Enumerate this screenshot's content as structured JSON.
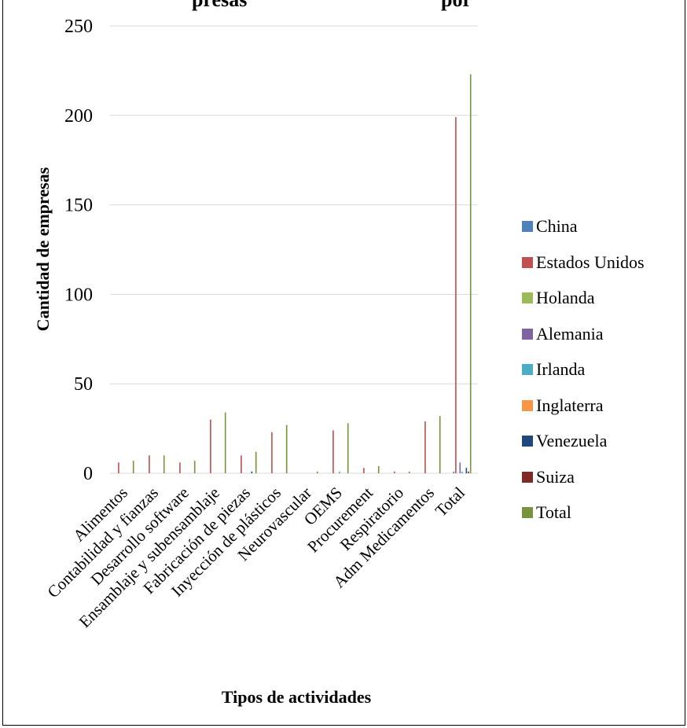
{
  "chart_data": {
    "type": "bar",
    "title": "",
    "title_fragments": [
      "presas",
      "por"
    ],
    "xlabel": "Tipos de actividades",
    "ylabel": "Cantidad  de empresas",
    "ylim": [
      0,
      250
    ],
    "yticks": [
      0,
      50,
      100,
      150,
      200,
      250
    ],
    "grid": true,
    "legend_position": "right",
    "categories": [
      "Alimentos",
      "Contabilidad y fianzas",
      "Desarrollo software",
      "Ensamblaje y subensamblaje",
      "Fabricación de piezas",
      "Inyección de plásticos",
      "Neurovascular",
      "OEMS",
      "Procurement",
      "Respiratorio",
      "Adm Medicamentos",
      "Total"
    ],
    "series": [
      {
        "name": "China",
        "color": "#4f81bd",
        "values": [
          0,
          0,
          0,
          0,
          0,
          0,
          0,
          0,
          0,
          0,
          0,
          1
        ]
      },
      {
        "name": "Estados Unidos",
        "color": "#c0504d",
        "values": [
          6,
          10,
          6,
          30,
          10,
          23,
          0,
          24,
          3,
          1,
          29,
          199
        ]
      },
      {
        "name": "Holanda",
        "color": "#9bbb59",
        "values": [
          0,
          0,
          0,
          0,
          0,
          0,
          0,
          0,
          0,
          0,
          0,
          0
        ]
      },
      {
        "name": "Alemania",
        "color": "#8064a2",
        "values": [
          0,
          0,
          0,
          0,
          0,
          0,
          0,
          0,
          0,
          0,
          0,
          6
        ]
      },
      {
        "name": "Irlanda",
        "color": "#4bacc6",
        "values": [
          0,
          0,
          0,
          0,
          0,
          0,
          0,
          1,
          0,
          0,
          0,
          1
        ]
      },
      {
        "name": "Inglaterra",
        "color": "#f79646",
        "values": [
          0,
          0,
          0,
          0,
          0,
          0,
          0,
          0,
          0,
          0,
          0,
          0
        ]
      },
      {
        "name": "Venezuela",
        "color": "#1f497d",
        "values": [
          0,
          0,
          0,
          0,
          1,
          0,
          0,
          0,
          0,
          0,
          0,
          3
        ]
      },
      {
        "name": "Suiza",
        "color": "#7f2a26",
        "values": [
          0,
          0,
          0,
          0,
          0,
          0,
          0,
          0,
          0,
          0,
          0,
          1
        ]
      },
      {
        "name": "Total",
        "color": "#77933c",
        "values": [
          7,
          10,
          7,
          34,
          12,
          27,
          1,
          28,
          4,
          1,
          32,
          223
        ]
      }
    ]
  }
}
